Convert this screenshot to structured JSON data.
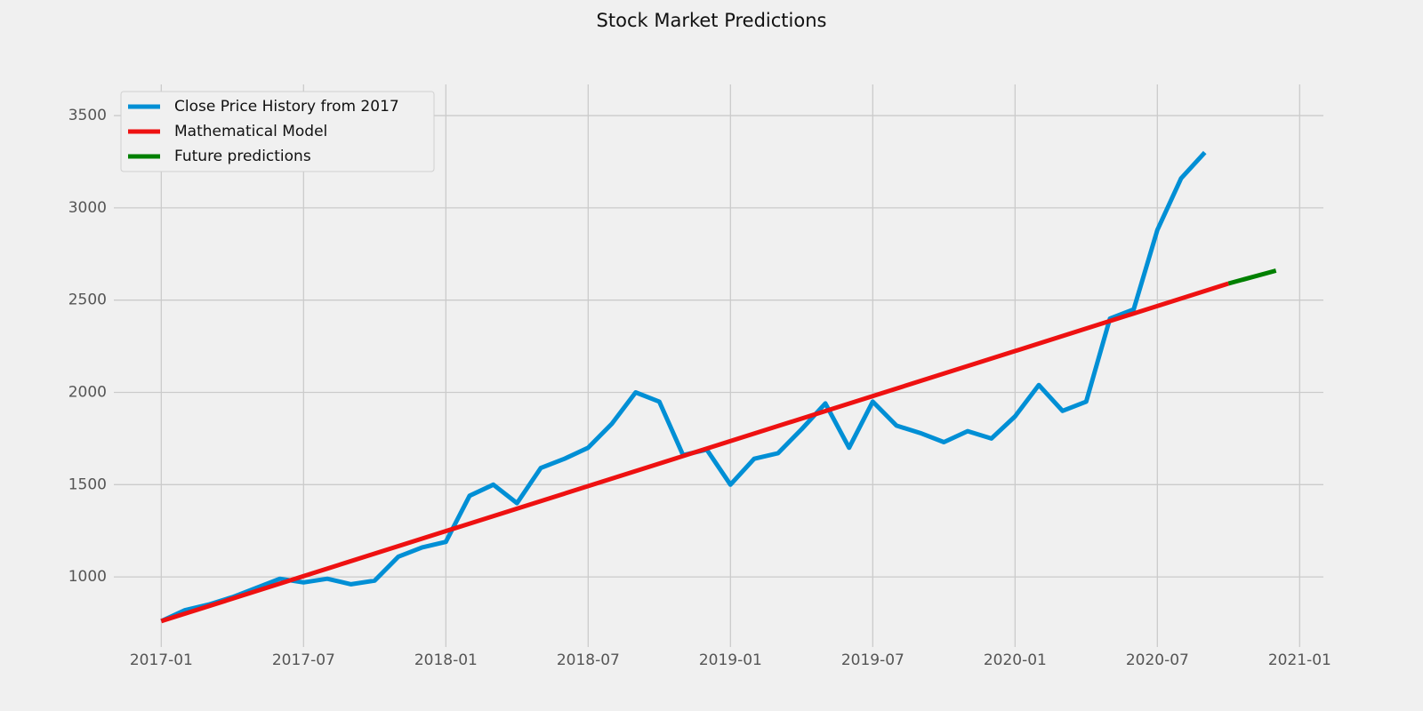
{
  "chart_data": {
    "type": "line",
    "title": "Stock Market Predictions",
    "xlim": [
      "2016-11",
      "2021-02"
    ],
    "xticks": [
      "2017-01",
      "2017-07",
      "2018-01",
      "2018-07",
      "2019-01",
      "2019-07",
      "2020-01",
      "2020-07",
      "2021-01"
    ],
    "ylim": [
      620,
      3640
    ],
    "yticks": [
      1000,
      1500,
      2000,
      2500,
      3000,
      3500
    ],
    "grid": true,
    "legend": "upper left",
    "series": [
      {
        "name": "Close Price History from 2017",
        "color": "#008fd5",
        "x": [
          "2017-01",
          "2017-02",
          "2017-03",
          "2017-04",
          "2017-05",
          "2017-06",
          "2017-07",
          "2017-08",
          "2017-09",
          "2017-10",
          "2017-11",
          "2017-12",
          "2018-01",
          "2018-02",
          "2018-03",
          "2018-04",
          "2018-05",
          "2018-06",
          "2018-07",
          "2018-08",
          "2018-09",
          "2018-10",
          "2018-11",
          "2018-12",
          "2019-01",
          "2019-02",
          "2019-03",
          "2019-04",
          "2019-05",
          "2019-06",
          "2019-07",
          "2019-08",
          "2019-09",
          "2019-10",
          "2019-11",
          "2019-12",
          "2020-01",
          "2020-02",
          "2020-03",
          "2020-04",
          "2020-05",
          "2020-06",
          "2020-07",
          "2020-08",
          "2020-09"
        ],
        "values": [
          760,
          820,
          850,
          890,
          940,
          990,
          970,
          990,
          960,
          980,
          1110,
          1160,
          1190,
          1440,
          1500,
          1400,
          1590,
          1640,
          1700,
          1830,
          2000,
          1950,
          1660,
          1690,
          1500,
          1640,
          1670,
          1800,
          1940,
          1700,
          1950,
          1820,
          1780,
          1730,
          1790,
          1750,
          1870,
          2040,
          1900,
          1950,
          2400,
          2450,
          2880,
          3160,
          3300
        ]
      },
      {
        "name": "Mathematical Model",
        "color": "#ee1111",
        "x": [
          "2017-01",
          "2020-10"
        ],
        "values": [
          760,
          2590
        ]
      },
      {
        "name": "Future predictions",
        "color": "#008000",
        "x": [
          "2020-10",
          "2020-12"
        ],
        "values": [
          2590,
          2660
        ]
      }
    ]
  }
}
